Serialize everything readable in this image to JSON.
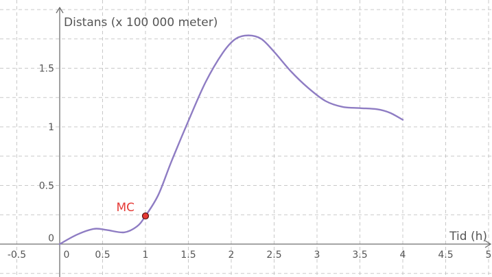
{
  "chart_data": {
    "type": "line",
    "xlabel": "Tid (h)",
    "ylabel": "Distans (x 100 000 meter)",
    "xlim": [
      -0.55,
      5.0
    ],
    "ylim": [
      -0.3,
      1.95
    ],
    "x_ticks": [
      {
        "value": -0.5,
        "label": "-0.5"
      },
      {
        "value": 0,
        "label": "0"
      },
      {
        "value": 0.5,
        "label": "0.5"
      },
      {
        "value": 1,
        "label": "1"
      },
      {
        "value": 1.5,
        "label": "1.5"
      },
      {
        "value": 2,
        "label": "2"
      },
      {
        "value": 2.5,
        "label": "2.5"
      },
      {
        "value": 3,
        "label": "3"
      },
      {
        "value": 3.5,
        "label": "3.5"
      },
      {
        "value": 4,
        "label": "4"
      },
      {
        "value": 4.5,
        "label": "4.5"
      },
      {
        "value": 5,
        "label": "5"
      }
    ],
    "y_ticks": [
      {
        "value": 0,
        "label": "0"
      },
      {
        "value": 0.5,
        "label": "0.5"
      },
      {
        "value": 1,
        "label": "1"
      },
      {
        "value": 1.5,
        "label": "1.5"
      }
    ],
    "grid": true,
    "series": [
      {
        "color": "#8e7cc3",
        "x": [
          0,
          0.2,
          0.4,
          0.55,
          0.75,
          0.9,
          1.0,
          1.15,
          1.3,
          1.5,
          1.7,
          1.9,
          2.05,
          2.2,
          2.35,
          2.5,
          2.7,
          2.9,
          3.1,
          3.3,
          3.5,
          3.7,
          3.85,
          4.0
        ],
        "y": [
          0,
          0.08,
          0.13,
          0.12,
          0.1,
          0.15,
          0.24,
          0.42,
          0.7,
          1.05,
          1.38,
          1.63,
          1.75,
          1.78,
          1.75,
          1.64,
          1.47,
          1.33,
          1.22,
          1.17,
          1.16,
          1.15,
          1.12,
          1.06
        ]
      }
    ],
    "annotations": [
      {
        "label": "MC",
        "x": 1.0,
        "y": 0.24,
        "color": "#e53935"
      }
    ]
  }
}
